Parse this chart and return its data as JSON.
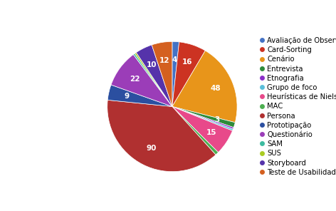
{
  "labels": [
    "Avaliação de Observação",
    "Card-Sorting",
    "Cenário",
    "Entrevista",
    "Etnografia",
    "Grupo de foco",
    "Heurísticas de Nielsen",
    "MAC",
    "Persona",
    "Prototipação",
    "Questionário",
    "SAM",
    "SUS",
    "Storyboard",
    "Teste de Usabilidade"
  ],
  "values": [
    4,
    16,
    48,
    3,
    1,
    1,
    15,
    2,
    90,
    9,
    22,
    1,
    1,
    10,
    12
  ],
  "colors": [
    "#4472C4",
    "#CC3322",
    "#E8951A",
    "#2E8B3A",
    "#8B2FC9",
    "#5BBFDA",
    "#E8498A",
    "#4CAF50",
    "#B03030",
    "#2B4FA0",
    "#9B3DB8",
    "#3DBBA0",
    "#AACC22",
    "#5533AA",
    "#D46020"
  ],
  "legend_fontsize": 7.2,
  "pctdistance": 0.72
}
